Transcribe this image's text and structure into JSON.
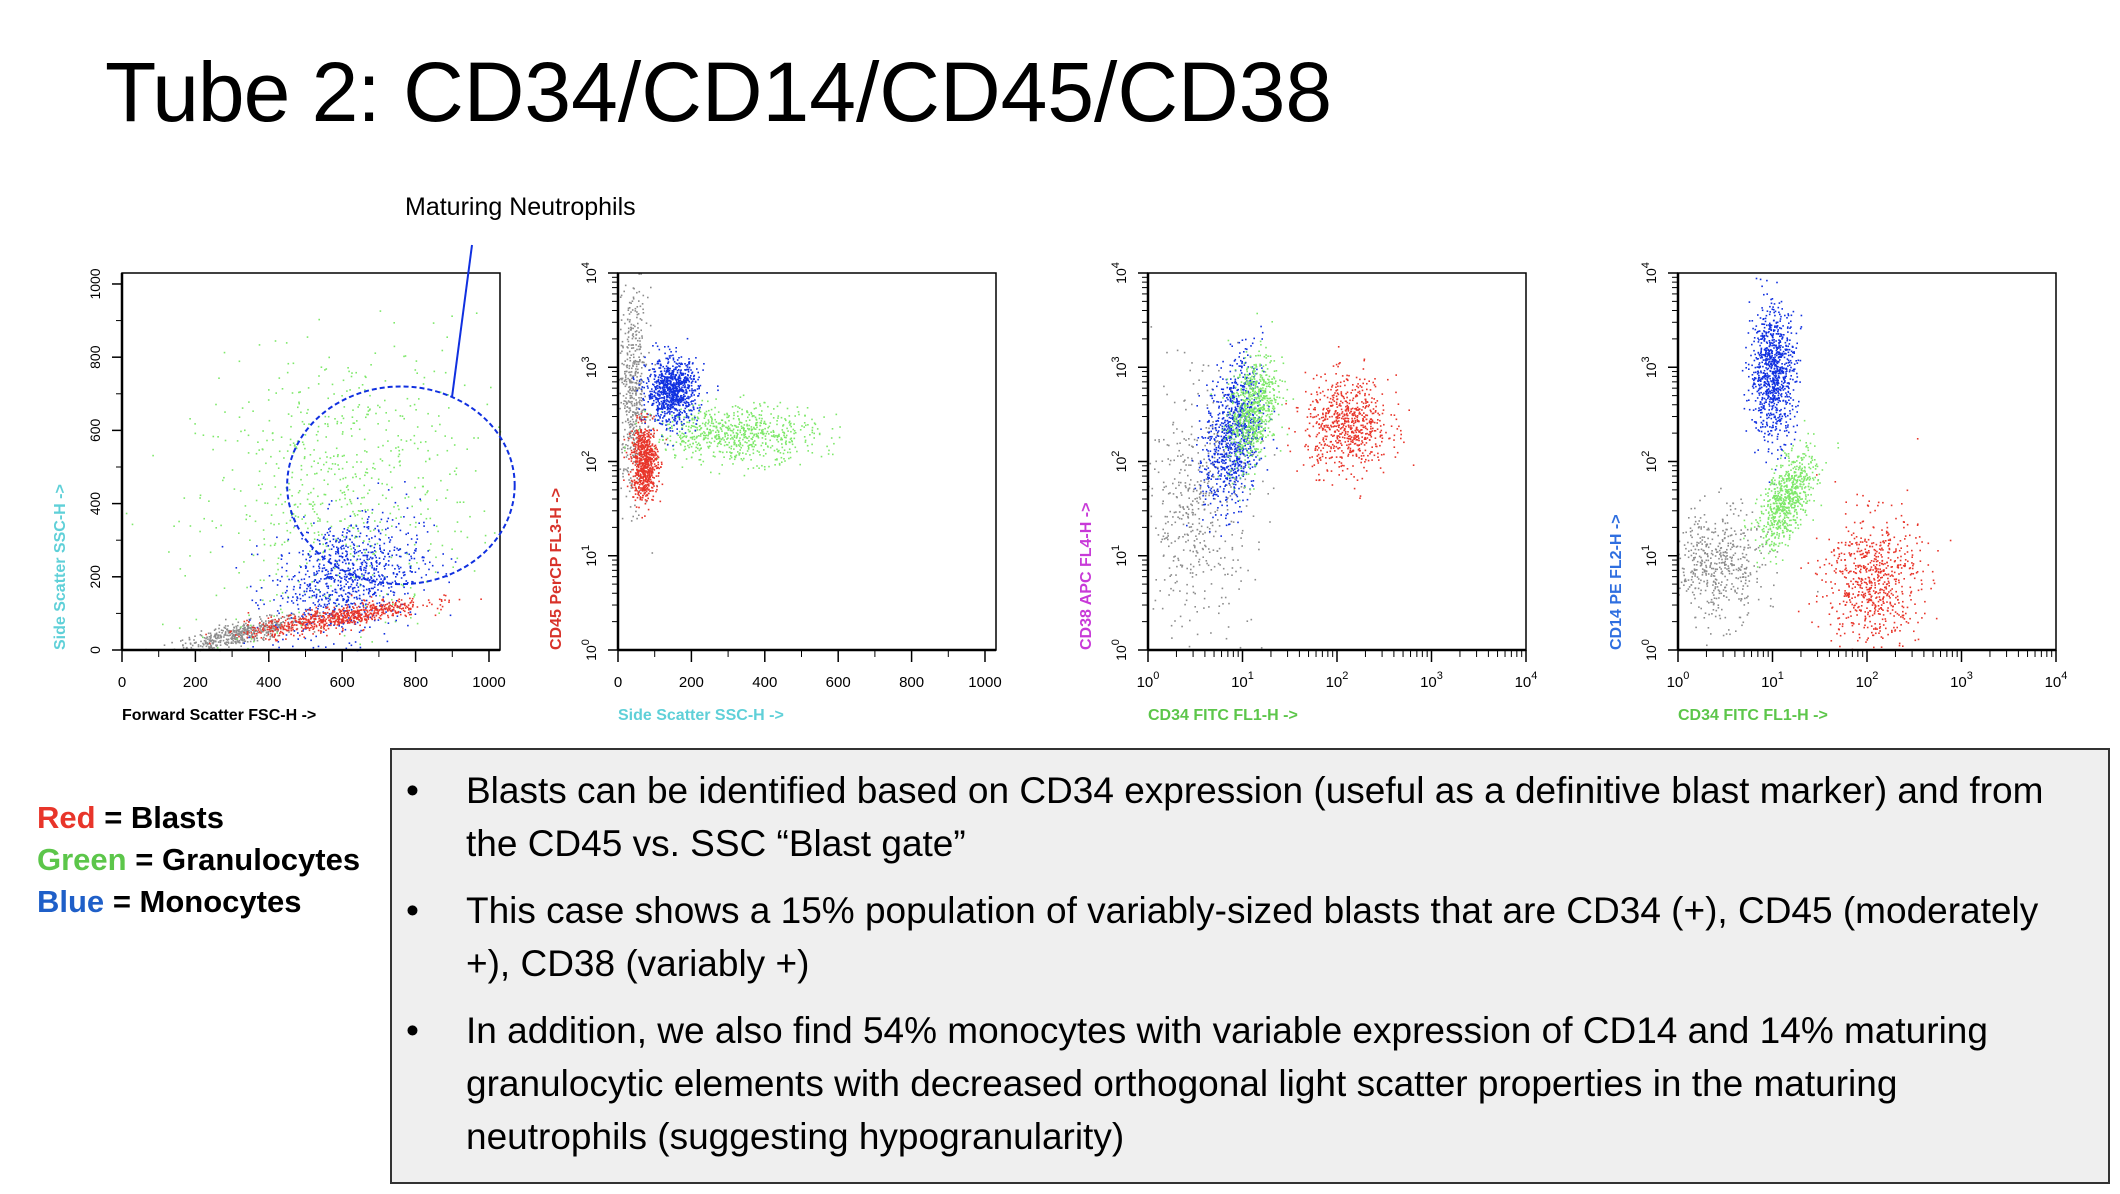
{
  "title": {
    "prefix": "Tube 2:",
    "main": "CD34/CD14/CD45/CD38"
  },
  "annotation": "Maturing Neutrophils",
  "legend": [
    {
      "color_word": "Red",
      "label": "= Blasts",
      "color": "#e8352a"
    },
    {
      "color_word": "Green",
      "label": "= Granulocytes",
      "color": "#5cc64a"
    },
    {
      "color_word": "Blue",
      "label": "= Monocytes",
      "color": "#1f5fc8"
    }
  ],
  "bullets": [
    "Blasts can be identified based on CD34 expression (useful as a definitive blast marker) and from the CD45 vs. SSC “Blast gate”",
    "This case shows a 15% population of variably-sized blasts that are CD34 (+), CD45 (moderately +), CD38 (variably +)",
    "In addition, we also find 54% monocytes with variable expression of CD14 and 14% maturing granulocytic elements with decreased orthogonal light scatter properties in the maturing neutrophils (suggesting hypogranularity)"
  ],
  "colors": {
    "blasts": "#e8352a",
    "granulocytes": "#7ee86a",
    "monocytes": "#1030e0",
    "other": "#8c8c8c"
  },
  "chart_data": [
    {
      "type": "scatter",
      "xlabel": "Forward Scatter FSC-H ->",
      "xlabel_color": "#000000",
      "ylabel": "Side Scatter SSC-H ->",
      "ylabel_color": "#5fd0d8",
      "xscale": "linear",
      "yscale": "linear",
      "xlim": [
        0,
        1030
      ],
      "ylim": [
        0,
        1030
      ],
      "xticks": [
        "0",
        "200",
        "400",
        "600",
        "800",
        "1000"
      ],
      "yticks": [
        "0",
        "200",
        "400",
        "600",
        "800",
        "1000"
      ],
      "gate": {
        "shape": "ellipse",
        "label": "Maturing Neutrophils",
        "center": [
          760,
          450
        ],
        "radii": [
          310,
          270
        ],
        "color": "#1030e0"
      },
      "populations": [
        {
          "name": "other",
          "color": "#8c8c8c",
          "x": 320,
          "y": 45,
          "sx": 90,
          "sy": 25,
          "corr": 0.8
        },
        {
          "name": "Granulocytes",
          "color": "#7ee86a",
          "x": 580,
          "y": 420,
          "sx": 190,
          "sy": 210,
          "corr": 0.2
        },
        {
          "name": "Monocytes",
          "color": "#1030e0",
          "x": 610,
          "y": 200,
          "sx": 100,
          "sy": 85,
          "corr": 0.3
        },
        {
          "name": "Blasts",
          "color": "#e8352a",
          "x": 580,
          "y": 90,
          "sx": 120,
          "sy": 25,
          "corr": 0.8
        }
      ]
    },
    {
      "type": "scatter",
      "xlabel": "Side Scatter SSC-H ->",
      "xlabel_color": "#5fd0d8",
      "ylabel": "CD45 PerCP FL3-H ->",
      "ylabel_color": "#d8322a",
      "xscale": "linear",
      "yscale": "log",
      "xlim": [
        0,
        1030
      ],
      "ylim": [
        1,
        10000
      ],
      "xticks": [
        "0",
        "200",
        "400",
        "600",
        "800",
        "1000"
      ],
      "yticks": [
        "10^0",
        "10^1",
        "10^2",
        "10^3",
        "10^4"
      ],
      "populations": [
        {
          "name": "other",
          "color": "#8c8c8c",
          "x": 40,
          "y": 2.7,
          "sx": 20,
          "sy": 0.55,
          "corr": 0
        },
        {
          "name": "Granulocytes",
          "color": "#7ee86a",
          "x": 320,
          "y": 2.3,
          "sx": 110,
          "sy": 0.15,
          "corr": 0
        },
        {
          "name": "Monocytes",
          "color": "#1030e0",
          "x": 145,
          "y": 2.75,
          "sx": 35,
          "sy": 0.17,
          "corr": 0
        },
        {
          "name": "Blasts",
          "color": "#e8352a",
          "x": 70,
          "y": 2.0,
          "sx": 18,
          "sy": 0.2,
          "corr": 0
        }
      ]
    },
    {
      "type": "scatter",
      "xlabel": "CD34 FITC FL1-H ->",
      "xlabel_color": "#5cc64a",
      "ylabel": "CD38 APC FL4-H ->",
      "ylabel_color": "#c83ad8",
      "xscale": "log",
      "yscale": "log",
      "xlim": [
        1,
        10000
      ],
      "ylim": [
        1,
        10000
      ],
      "xticks": [
        "10^0",
        "10^1",
        "10^2",
        "10^3",
        "10^4"
      ],
      "yticks": [
        "10^0",
        "10^1",
        "10^2",
        "10^3",
        "10^4"
      ],
      "populations": [
        {
          "name": "other",
          "color": "#8c8c8c",
          "x": 0.5,
          "y": 1.5,
          "sx": 0.3,
          "sy": 0.65,
          "corr": 0
        },
        {
          "name": "Monocytes",
          "color": "#1030e0",
          "x": 0.9,
          "y": 2.3,
          "sx": 0.15,
          "sy": 0.4,
          "corr": 0.3
        },
        {
          "name": "Granulocytes",
          "color": "#7ee86a",
          "x": 1.1,
          "y": 2.55,
          "sx": 0.13,
          "sy": 0.3,
          "corr": 0.4
        },
        {
          "name": "Blasts",
          "color": "#e8352a",
          "x": 2.1,
          "y": 2.4,
          "sx": 0.22,
          "sy": 0.25,
          "corr": 0
        }
      ]
    },
    {
      "type": "scatter",
      "xlabel": "CD34 FITC FL1-H ->",
      "xlabel_color": "#5cc64a",
      "ylabel": "CD14 PE FL2-H ->",
      "ylabel_color": "#2f6fe0",
      "xscale": "log",
      "yscale": "log",
      "xlim": [
        1,
        10000
      ],
      "ylim": [
        1,
        10000
      ],
      "xticks": [
        "10^0",
        "10^1",
        "10^2",
        "10^3",
        "10^4"
      ],
      "yticks": [
        "10^0",
        "10^1",
        "10^2",
        "10^3",
        "10^4"
      ],
      "populations": [
        {
          "name": "other",
          "color": "#8c8c8c",
          "x": 0.4,
          "y": 0.9,
          "sx": 0.25,
          "sy": 0.3,
          "corr": 0
        },
        {
          "name": "Monocytes",
          "color": "#1030e0",
          "x": 1.0,
          "y": 2.95,
          "sx": 0.12,
          "sy": 0.35,
          "corr": 0
        },
        {
          "name": "Granulocytes",
          "color": "#7ee86a",
          "x": 1.15,
          "y": 1.6,
          "sx": 0.15,
          "sy": 0.25,
          "corr": 0.6
        },
        {
          "name": "Blasts",
          "color": "#e8352a",
          "x": 2.05,
          "y": 0.75,
          "sx": 0.25,
          "sy": 0.35,
          "corr": 0
        }
      ]
    }
  ]
}
